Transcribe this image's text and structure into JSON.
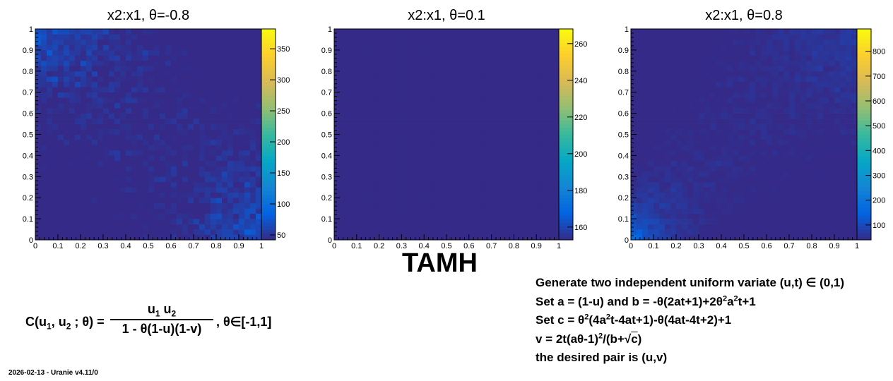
{
  "chart_data": [
    {
      "type": "heatmap",
      "title": "x2:x1, θ=-0.8",
      "x_ticks": [
        "0",
        "0.1",
        "0.2",
        "0.3",
        "0.4",
        "0.5",
        "0.6",
        "0.7",
        "0.8",
        "0.9",
        "1"
      ],
      "y_ticks": [
        "0",
        "0.1",
        "0.2",
        "0.3",
        "0.4",
        "0.5",
        "0.6",
        "0.7",
        "0.8",
        "0.9",
        "1"
      ],
      "xlim": [
        0,
        1
      ],
      "ylim": [
        0,
        1
      ],
      "bins": [
        40,
        40
      ],
      "theta": -0.8,
      "zlim": [
        42,
        382
      ],
      "colorbar_ticks": [
        "50",
        "100",
        "150",
        "200",
        "250",
        "300",
        "350"
      ],
      "colorbar_values": [
        50,
        100,
        150,
        200,
        250,
        300,
        350
      ]
    },
    {
      "type": "heatmap",
      "title": "x2:x1, θ=0.1",
      "x_ticks": [
        "0",
        "0.1",
        "0.2",
        "0.3",
        "0.4",
        "0.5",
        "0.6",
        "0.7",
        "0.8",
        "0.9",
        "1"
      ],
      "y_ticks": [
        "0",
        "0.1",
        "0.2",
        "0.3",
        "0.4",
        "0.5",
        "0.6",
        "0.7",
        "0.8",
        "0.9",
        "1"
      ],
      "xlim": [
        0,
        1
      ],
      "ylim": [
        0,
        1
      ],
      "bins": [
        40,
        40
      ],
      "theta": 0.1,
      "zlim": [
        153,
        268
      ],
      "colorbar_ticks": [
        "160",
        "180",
        "200",
        "220",
        "240",
        "260"
      ],
      "colorbar_values": [
        160,
        180,
        200,
        220,
        240,
        260
      ]
    },
    {
      "type": "heatmap",
      "title": "x2:x1, θ=0.8",
      "x_ticks": [
        "0",
        "0.1",
        "0.2",
        "0.3",
        "0.4",
        "0.5",
        "0.6",
        "0.7",
        "0.8",
        "0.9",
        "1"
      ],
      "y_ticks": [
        "0",
        "0.1",
        "0.2",
        "0.3",
        "0.4",
        "0.5",
        "0.6",
        "0.7",
        "0.8",
        "0.9",
        "1"
      ],
      "xlim": [
        0,
        1
      ],
      "ylim": [
        0,
        1
      ],
      "bins": [
        40,
        40
      ],
      "theta": 0.8,
      "zlim": [
        40,
        890
      ],
      "colorbar_ticks": [
        "100",
        "200",
        "300",
        "400",
        "500",
        "600",
        "700",
        "800"
      ],
      "colorbar_values": [
        100,
        200,
        300,
        400,
        500,
        600,
        700,
        800
      ]
    }
  ],
  "colormap": [
    "#352a87",
    "#0363e1",
    "#1485d4",
    "#06a7c6",
    "#38b99e",
    "#92bf73",
    "#d9ba56",
    "#fcce2e",
    "#f9fb0e"
  ],
  "header": {
    "title": "TAMH"
  },
  "formula": {
    "lhs_prefix": "C(u",
    "lhs_sub1": "1",
    "lhs_mid": ", u",
    "lhs_sub2": "2",
    "lhs_suffix": " ; θ) =",
    "num_a": "u",
    "num_sub1": "1",
    "num_b": " u",
    "num_sub2": "2",
    "denominator": "1 - θ(1-u)(1-v)",
    "rhs": ", θ∈[-1,1]"
  },
  "algorithm": {
    "line1": "Generate two independent uniform variate (u,t) ∈ (0,1)",
    "line2_a": "Set a = (1-u) and b = -θ(2at+1)+2θ",
    "line2_sup1": "2",
    "line2_b": "a",
    "line2_sup2": "2",
    "line2_c": "t+1",
    "line3_a": "Set c = θ",
    "line3_sup1": "2",
    "line3_b": "(4a",
    "line3_sup2": "2",
    "line3_c": "t-4at+1)-θ(4at-4t+2)+1",
    "line4_a": "v = 2t(aθ-1)",
    "line4_sup": "2",
    "line4_b": "/(b+",
    "line4_sqrt": "√",
    "line4_c": "c",
    "line4_d": ")",
    "line5": "the desired pair is (u,v)"
  },
  "footer": {
    "text": "2026-02-13 - Uranie v4.11/0"
  }
}
